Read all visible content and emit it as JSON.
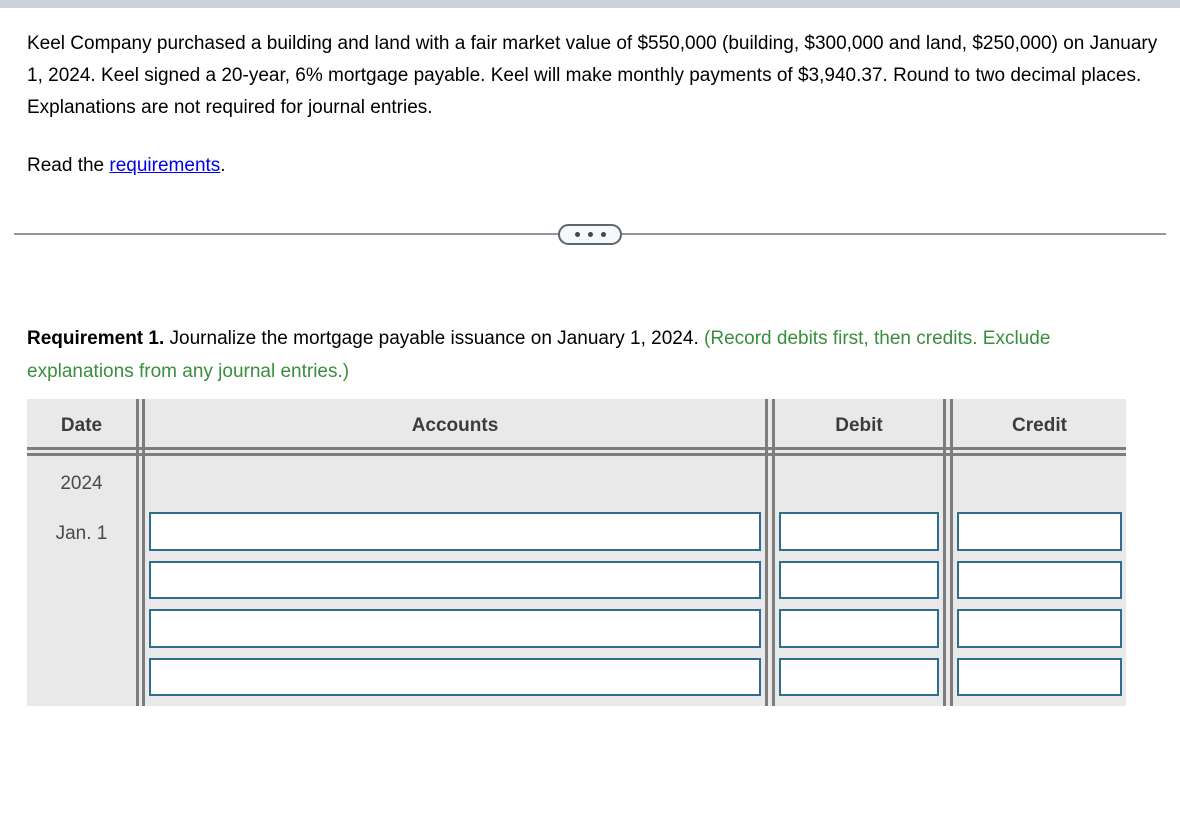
{
  "problem": {
    "text": "Keel Company purchased a building and land with a fair market value of $550,000 (building, $300,000 and land, $250,000) on January 1, 2024. Keel signed a 20-year, 6% mortgage payable. Keel will make monthly payments of $3,940.37. Round to two decimal places. Explanations are not required for journal entries.",
    "read_prefix": "Read the ",
    "requirements_link": "requirements",
    "read_suffix": "."
  },
  "divider": {
    "button_icon": "ellipsis-icon",
    "dot_count": 3
  },
  "requirement": {
    "title": "Requirement 1.",
    "instruction": " Journalize the mortgage payable issuance on January 1, 2024. ",
    "note": "(Record debits first, then credits. Exclude explanations from any journal entries.)"
  },
  "journal_table": {
    "headers": {
      "date": "Date",
      "accounts": "Accounts",
      "debit": "Debit",
      "credit": "Credit"
    },
    "date": {
      "year": "2024",
      "day": "Jan. 1"
    },
    "entry_rows": 4,
    "input_values": {
      "accounts": [
        "",
        "",
        "",
        ""
      ],
      "debit": [
        "",
        "",
        "",
        ""
      ],
      "credit": [
        "",
        "",
        "",
        ""
      ]
    }
  },
  "colors": {
    "top_strip": "#cdd1dc",
    "link_blue": "#0000ee",
    "note_green": "#388e3c",
    "table_background": "#e9e9e9",
    "table_line_gray": "#7d7d7d",
    "input_border_teal": "#2e6d8e",
    "divider_gray": "#9097a1"
  }
}
